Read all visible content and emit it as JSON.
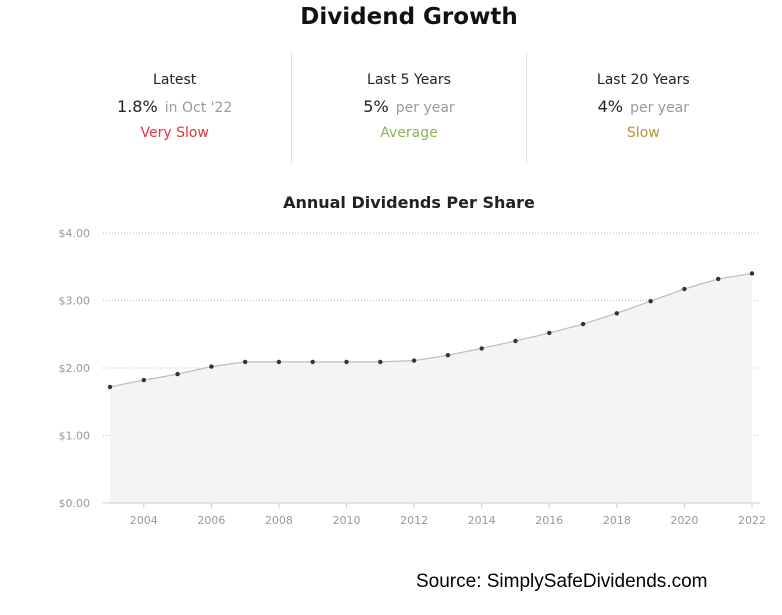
{
  "title": "Dividend Growth",
  "stats": [
    {
      "label": "Latest",
      "value": "1.8%",
      "sub": "in Oct '22",
      "rating": "Very Slow",
      "rating_color": "#e0363e"
    },
    {
      "label": "Last 5 Years",
      "value": "5%",
      "sub": "per year",
      "rating": "Average",
      "rating_color": "#8ab35a"
    },
    {
      "label": "Last 20 Years",
      "value": "4%",
      "sub": "per year",
      "rating": "Slow",
      "rating_color": "#c2922b"
    }
  ],
  "chart_data": {
    "type": "area",
    "title": "Annual Dividends Per Share",
    "xlabel": "",
    "ylabel": "",
    "x": [
      2003,
      2004,
      2005,
      2006,
      2007,
      2008,
      2009,
      2010,
      2011,
      2012,
      2013,
      2014,
      2015,
      2016,
      2017,
      2018,
      2019,
      2020,
      2021,
      2022
    ],
    "series": [
      {
        "values": [
          1.72,
          1.82,
          1.91,
          2.02,
          2.09,
          2.09,
          2.09,
          2.09,
          2.09,
          2.11,
          2.19,
          2.29,
          2.4,
          2.52,
          2.65,
          2.81,
          2.99,
          3.17,
          3.32,
          3.4
        ]
      }
    ],
    "ylim": [
      0,
      4
    ],
    "xlim": [
      2003,
      2022
    ],
    "y_ticks": [
      "$0.00",
      "$1.00",
      "$2.00",
      "$3.00",
      "$4.00"
    ],
    "x_ticks": [
      "2004",
      "2006",
      "2008",
      "2010",
      "2012",
      "2014",
      "2016",
      "2018",
      "2020",
      "2022"
    ],
    "grid": true,
    "line_color": "#bdbdbd",
    "fill_color": "#f4f4f4",
    "point_color": "#333333"
  },
  "source": "Source: SimplySafeDividends.com"
}
